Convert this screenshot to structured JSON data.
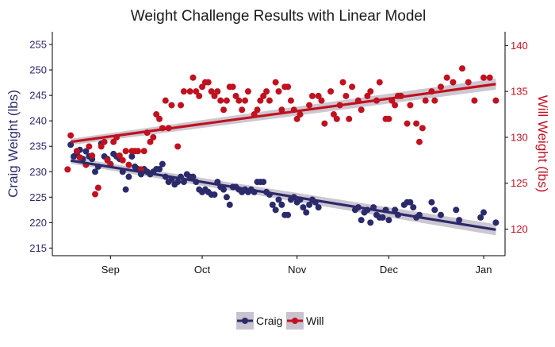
{
  "chart_data": {
    "type": "scatter",
    "title": "Weight Challenge Results with Linear Model",
    "x_axis": {
      "scale": "date",
      "tick_labels": [
        "Sep",
        "Oct",
        "Nov",
        "Dec",
        "Jan"
      ],
      "tick_dates": [
        "2017-09-01",
        "2017-10-01",
        "2017-11-01",
        "2017-12-01",
        "2018-01-01"
      ],
      "range": [
        "2017-08-13",
        "2018-01-08"
      ]
    },
    "y_axis_left": {
      "label": "Craig Weight (lbs)",
      "ticks": [
        215,
        220,
        225,
        230,
        235,
        240,
        245,
        250,
        255
      ],
      "range": [
        213.5,
        257.5
      ],
      "color": "#2b2a6b"
    },
    "y_axis_right": {
      "label": "Will Weight (lbs)",
      "ticks": [
        120,
        125,
        130,
        135,
        140
      ],
      "range": [
        117.1,
        141.5
      ],
      "color": "#c0111f"
    },
    "grid": false,
    "legend": {
      "position": "bottom",
      "entries": [
        {
          "label": "Craig",
          "color": "#2b2a6b"
        },
        {
          "label": "Will",
          "color": "#c0111f"
        }
      ]
    },
    "series": [
      {
        "name": "Craig",
        "axis": "left",
        "color": "#2b2a6b",
        "points": [
          [
            "2017-08-19",
            235.3
          ],
          [
            "2017-08-20",
            233.0
          ],
          [
            "2017-08-21",
            233.5
          ],
          [
            "2017-08-22",
            234.3
          ],
          [
            "2017-08-23",
            232.5
          ],
          [
            "2017-08-24",
            234.0
          ],
          [
            "2017-08-25",
            233.0
          ],
          [
            "2017-08-26",
            232.5
          ],
          [
            "2017-08-27",
            230.0
          ],
          [
            "2017-08-28",
            231.0
          ],
          [
            "2017-08-29",
            235.5
          ],
          [
            "2017-08-30",
            233.0
          ],
          [
            "2017-08-31",
            232.5
          ],
          [
            "2017-09-01",
            231.5
          ],
          [
            "2017-09-02",
            233.5
          ],
          [
            "2017-09-03",
            233.0
          ],
          [
            "2017-09-04",
            232.5
          ],
          [
            "2017-09-05",
            230.0
          ],
          [
            "2017-09-06",
            226.5
          ],
          [
            "2017-09-07",
            229.0
          ],
          [
            "2017-09-08",
            233.0
          ],
          [
            "2017-09-09",
            231.0
          ],
          [
            "2017-09-10",
            230.5
          ],
          [
            "2017-09-11",
            229.5
          ],
          [
            "2017-09-12",
            230.5
          ],
          [
            "2017-09-13",
            230.0
          ],
          [
            "2017-09-14",
            229.5
          ],
          [
            "2017-09-15",
            230.0
          ],
          [
            "2017-09-16",
            230.5
          ],
          [
            "2017-09-17",
            230.5
          ],
          [
            "2017-09-18",
            231.5
          ],
          [
            "2017-09-19",
            229.0
          ],
          [
            "2017-09-20",
            228.0
          ],
          [
            "2017-09-21",
            228.5
          ],
          [
            "2017-09-22",
            227.5
          ],
          [
            "2017-09-23",
            228.0
          ],
          [
            "2017-09-24",
            229.0
          ],
          [
            "2017-09-25",
            228.0
          ],
          [
            "2017-09-26",
            229.5
          ],
          [
            "2017-09-27",
            229.0
          ],
          [
            "2017-09-28",
            229.0
          ],
          [
            "2017-09-29",
            228.0
          ],
          [
            "2017-09-30",
            226.5
          ],
          [
            "2017-10-01",
            226.0
          ],
          [
            "2017-10-02",
            226.5
          ],
          [
            "2017-10-03",
            226.0
          ],
          [
            "2017-10-04",
            225.5
          ],
          [
            "2017-10-05",
            225.5
          ],
          [
            "2017-10-06",
            228.0
          ],
          [
            "2017-10-07",
            227.0
          ],
          [
            "2017-10-08",
            226.5
          ],
          [
            "2017-10-09",
            225.0
          ],
          [
            "2017-10-10",
            223.5
          ],
          [
            "2017-10-11",
            227.0
          ],
          [
            "2017-10-12",
            227.0
          ],
          [
            "2017-10-13",
            226.5
          ],
          [
            "2017-10-14",
            226.0
          ],
          [
            "2017-10-15",
            226.5
          ],
          [
            "2017-10-16",
            226.0
          ],
          [
            "2017-10-17",
            226.5
          ],
          [
            "2017-10-18",
            226.0
          ],
          [
            "2017-10-19",
            228.0
          ],
          [
            "2017-10-20",
            228.0
          ],
          [
            "2017-10-21",
            228.0
          ],
          [
            "2017-10-22",
            226.0
          ],
          [
            "2017-10-23",
            225.5
          ],
          [
            "2017-10-24",
            223.5
          ],
          [
            "2017-10-25",
            222.5
          ],
          [
            "2017-10-26",
            224.5
          ],
          [
            "2017-10-27",
            223.5
          ],
          [
            "2017-10-28",
            221.5
          ],
          [
            "2017-10-29",
            221.5
          ],
          [
            "2017-10-30",
            224.5
          ],
          [
            "2017-10-31",
            225.0
          ],
          [
            "2017-11-01",
            224.0
          ],
          [
            "2017-11-02",
            224.5
          ],
          [
            "2017-11-03",
            223.0
          ],
          [
            "2017-11-04",
            222.0
          ],
          [
            "2017-11-05",
            223.5
          ],
          [
            "2017-11-06",
            224.5
          ],
          [
            "2017-11-07",
            224.0
          ],
          [
            "2017-11-08",
            223.0
          ],
          [
            "2017-11-20",
            222.5
          ],
          [
            "2017-11-21",
            223.0
          ],
          [
            "2017-11-22",
            220.5
          ],
          [
            "2017-11-23",
            222.0
          ],
          [
            "2017-11-24",
            222.5
          ],
          [
            "2017-11-25",
            220.0
          ],
          [
            "2017-11-26",
            223.0
          ],
          [
            "2017-11-27",
            221.5
          ],
          [
            "2017-11-28",
            221.0
          ],
          [
            "2017-11-29",
            221.0
          ],
          [
            "2017-11-30",
            222.5
          ],
          [
            "2017-12-01",
            220.5
          ],
          [
            "2017-12-03",
            222.5
          ],
          [
            "2017-12-04",
            221.5
          ],
          [
            "2017-12-06",
            223.5
          ],
          [
            "2017-12-07",
            224.0
          ],
          [
            "2017-12-08",
            224.0
          ],
          [
            "2017-12-09",
            223.0
          ],
          [
            "2017-12-10",
            221.0
          ],
          [
            "2017-12-11",
            221.5
          ],
          [
            "2017-12-15",
            224.0
          ],
          [
            "2017-12-16",
            222.5
          ],
          [
            "2017-12-18",
            221.5
          ],
          [
            "2017-12-23",
            222.5
          ],
          [
            "2017-12-24",
            220.5
          ],
          [
            "2017-12-31",
            221.0
          ],
          [
            "2018-01-01",
            222.0
          ],
          [
            "2018-01-05",
            220.0
          ]
        ],
        "fit": {
          "start": [
            "2017-08-19",
            232.2
          ],
          "end": [
            "2018-01-05",
            218.6
          ]
        }
      },
      {
        "name": "Will",
        "axis": "right",
        "color": "#c0111f",
        "points": [
          [
            "2017-08-18",
            126.5
          ],
          [
            "2017-08-19",
            130.2
          ],
          [
            "2017-08-21",
            128.5
          ],
          [
            "2017-08-22",
            127.8
          ],
          [
            "2017-08-24",
            127.0
          ],
          [
            "2017-08-25",
            129.0
          ],
          [
            "2017-08-26",
            128.0
          ],
          [
            "2017-08-27",
            123.8
          ],
          [
            "2017-08-28",
            124.5
          ],
          [
            "2017-08-29",
            129.0
          ],
          [
            "2017-08-30",
            129.5
          ],
          [
            "2017-08-31",
            127.5
          ],
          [
            "2017-09-01",
            127.0
          ],
          [
            "2017-09-02",
            129.5
          ],
          [
            "2017-09-03",
            130.0
          ],
          [
            "2017-09-04",
            128.0
          ],
          [
            "2017-09-05",
            127.5
          ],
          [
            "2017-09-06",
            128.5
          ],
          [
            "2017-09-07",
            127.0
          ],
          [
            "2017-09-08",
            128.5
          ],
          [
            "2017-09-09",
            128.5
          ],
          [
            "2017-09-10",
            128.5
          ],
          [
            "2017-09-11",
            126.5
          ],
          [
            "2017-09-12",
            128.5
          ],
          [
            "2017-09-13",
            130.5
          ],
          [
            "2017-09-14",
            129.5
          ],
          [
            "2017-09-15",
            130.0
          ],
          [
            "2017-09-16",
            132.5
          ],
          [
            "2017-09-17",
            132.0
          ],
          [
            "2017-09-18",
            131.0
          ],
          [
            "2017-09-19",
            134.0
          ],
          [
            "2017-09-20",
            131.0
          ],
          [
            "2017-09-21",
            133.5
          ],
          [
            "2017-09-23",
            129.0
          ],
          [
            "2017-09-24",
            133.5
          ],
          [
            "2017-09-25",
            135.0
          ],
          [
            "2017-09-27",
            135.0
          ],
          [
            "2017-09-28",
            136.5
          ],
          [
            "2017-09-29",
            135.0
          ],
          [
            "2017-09-30",
            134.5
          ],
          [
            "2017-10-01",
            135.5
          ],
          [
            "2017-10-02",
            136.0
          ],
          [
            "2017-10-03",
            136.0
          ],
          [
            "2017-10-04",
            135.0
          ],
          [
            "2017-10-05",
            134.5
          ],
          [
            "2017-10-06",
            135.0
          ],
          [
            "2017-10-07",
            134.0
          ],
          [
            "2017-10-08",
            133.0
          ],
          [
            "2017-10-09",
            134.0
          ],
          [
            "2017-10-10",
            135.5
          ],
          [
            "2017-10-11",
            135.5
          ],
          [
            "2017-10-12",
            134.5
          ],
          [
            "2017-10-13",
            134.0
          ],
          [
            "2017-10-14",
            133.0
          ],
          [
            "2017-10-15",
            134.0
          ],
          [
            "2017-10-16",
            135.0
          ],
          [
            "2017-10-18",
            132.5
          ],
          [
            "2017-10-19",
            133.0
          ],
          [
            "2017-10-20",
            134.0
          ],
          [
            "2017-10-21",
            134.5
          ],
          [
            "2017-10-22",
            135.0
          ],
          [
            "2017-10-23",
            134.0
          ],
          [
            "2017-10-25",
            136.0
          ],
          [
            "2017-10-26",
            135.0
          ],
          [
            "2017-10-27",
            133.0
          ],
          [
            "2017-10-28",
            135.5
          ],
          [
            "2017-10-29",
            135.5
          ],
          [
            "2017-10-30",
            134.0
          ],
          [
            "2017-10-31",
            133.0
          ],
          [
            "2017-11-01",
            132.0
          ],
          [
            "2017-11-02",
            132.5
          ],
          [
            "2017-11-05",
            133.5
          ],
          [
            "2017-11-06",
            134.5
          ],
          [
            "2017-11-08",
            134.5
          ],
          [
            "2017-11-09",
            134.0
          ],
          [
            "2017-11-10",
            131.5
          ],
          [
            "2017-11-12",
            135.0
          ],
          [
            "2017-11-13",
            132.5
          ],
          [
            "2017-11-14",
            132.0
          ],
          [
            "2017-11-15",
            133.5
          ],
          [
            "2017-11-16",
            136.0
          ],
          [
            "2017-11-17",
            134.5
          ],
          [
            "2017-11-18",
            132.0
          ],
          [
            "2017-11-19",
            135.5
          ],
          [
            "2017-11-21",
            134.0
          ],
          [
            "2017-11-22",
            133.0
          ],
          [
            "2017-11-24",
            134.5
          ],
          [
            "2017-11-25",
            135.0
          ],
          [
            "2017-11-27",
            134.0
          ],
          [
            "2017-11-28",
            136.0
          ],
          [
            "2017-11-30",
            132.0
          ],
          [
            "2017-12-01",
            132.0
          ],
          [
            "2017-12-02",
            134.0
          ],
          [
            "2017-12-03",
            133.5
          ],
          [
            "2017-12-04",
            134.5
          ],
          [
            "2017-12-05",
            134.5
          ],
          [
            "2017-12-07",
            131.5
          ],
          [
            "2017-12-08",
            133.5
          ],
          [
            "2017-12-10",
            131.5
          ],
          [
            "2017-12-11",
            129.5
          ],
          [
            "2017-12-12",
            131.0
          ],
          [
            "2017-12-13",
            134.0
          ],
          [
            "2017-12-15",
            135.0
          ],
          [
            "2017-12-16",
            134.0
          ],
          [
            "2017-12-18",
            135.5
          ],
          [
            "2017-12-20",
            136.5
          ],
          [
            "2017-12-22",
            136.0
          ],
          [
            "2017-12-25",
            137.5
          ],
          [
            "2017-12-27",
            136.0
          ],
          [
            "2017-12-29",
            134.0
          ],
          [
            "2018-01-01",
            136.5
          ],
          [
            "2018-01-03",
            136.5
          ],
          [
            "2018-01-05",
            134.0
          ]
        ],
        "fit": {
          "start": [
            "2017-08-19",
            129.5
          ],
          "end": [
            "2018-01-05",
            135.8
          ]
        }
      }
    ]
  }
}
